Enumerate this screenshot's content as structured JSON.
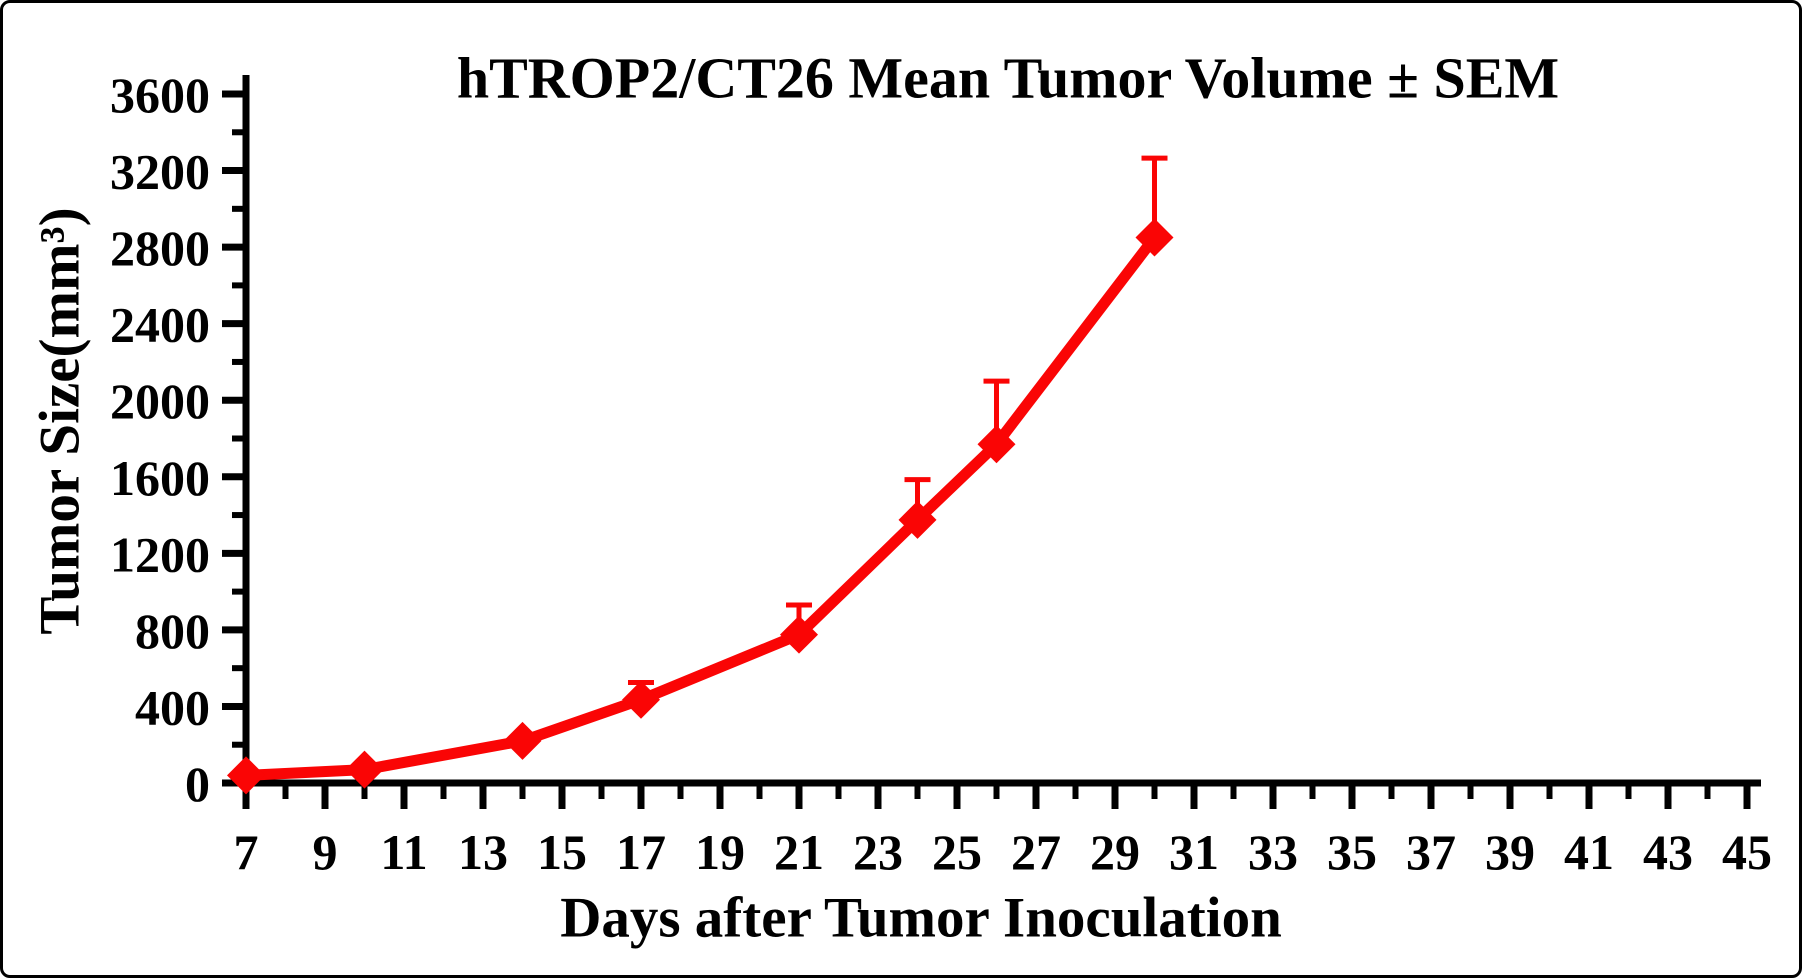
{
  "figure": {
    "title": "hTROP2/CT26 Mean Tumor Volume ± SEM",
    "x_axis_label": "Days after Tumor Inoculation",
    "y_axis_label": "Tumor Size(mm³)"
  },
  "colors": {
    "series": "#fa0505",
    "axis": "#000000",
    "background": "#ffffff"
  },
  "chart_data": {
    "type": "line",
    "title": "hTROP2/CT26 Mean Tumor Volume ± SEM",
    "xlabel": "Days after Tumor Inoculation",
    "ylabel": "Tumor Size(mm³)",
    "series": [
      {
        "name": "hTROP2/CT26 mean tumor volume",
        "marker": "diamond",
        "color": "#fa0505",
        "points": [
          {
            "day": 7,
            "value": 40,
            "sem_upper": null
          },
          {
            "day": 10,
            "value": 70,
            "sem_upper": null
          },
          {
            "day": 14,
            "value": 220,
            "sem_upper": null
          },
          {
            "day": 17,
            "value": 435,
            "sem_upper": 90
          },
          {
            "day": 21,
            "value": 775,
            "sem_upper": 155
          },
          {
            "day": 24,
            "value": 1375,
            "sem_upper": 210
          },
          {
            "day": 26,
            "value": 1770,
            "sem_upper": 330
          },
          {
            "day": 30,
            "value": 2850,
            "sem_upper": 415
          }
        ]
      }
    ],
    "error_bars": "upper SEM only, capped",
    "xlim": [
      7,
      45.4
    ],
    "ylim": [
      0,
      3600
    ],
    "x_major_ticks": [
      7,
      9,
      11,
      13,
      15,
      17,
      19,
      21,
      23,
      25,
      27,
      29,
      31,
      33,
      35,
      37,
      39,
      41,
      43,
      45
    ],
    "x_minor_ticks": [
      8,
      10,
      12,
      14,
      16,
      18,
      20,
      22,
      24,
      26,
      28,
      30,
      32,
      34,
      36,
      38,
      40,
      42,
      44
    ],
    "y_major_ticks": [
      0,
      400,
      800,
      1200,
      1600,
      2000,
      2400,
      2800,
      3200,
      3600
    ],
    "y_minor_ticks": [
      200,
      600,
      1000,
      1400,
      1800,
      2200,
      2600,
      3000,
      3400
    ],
    "grid": false,
    "legend_position": "none"
  }
}
